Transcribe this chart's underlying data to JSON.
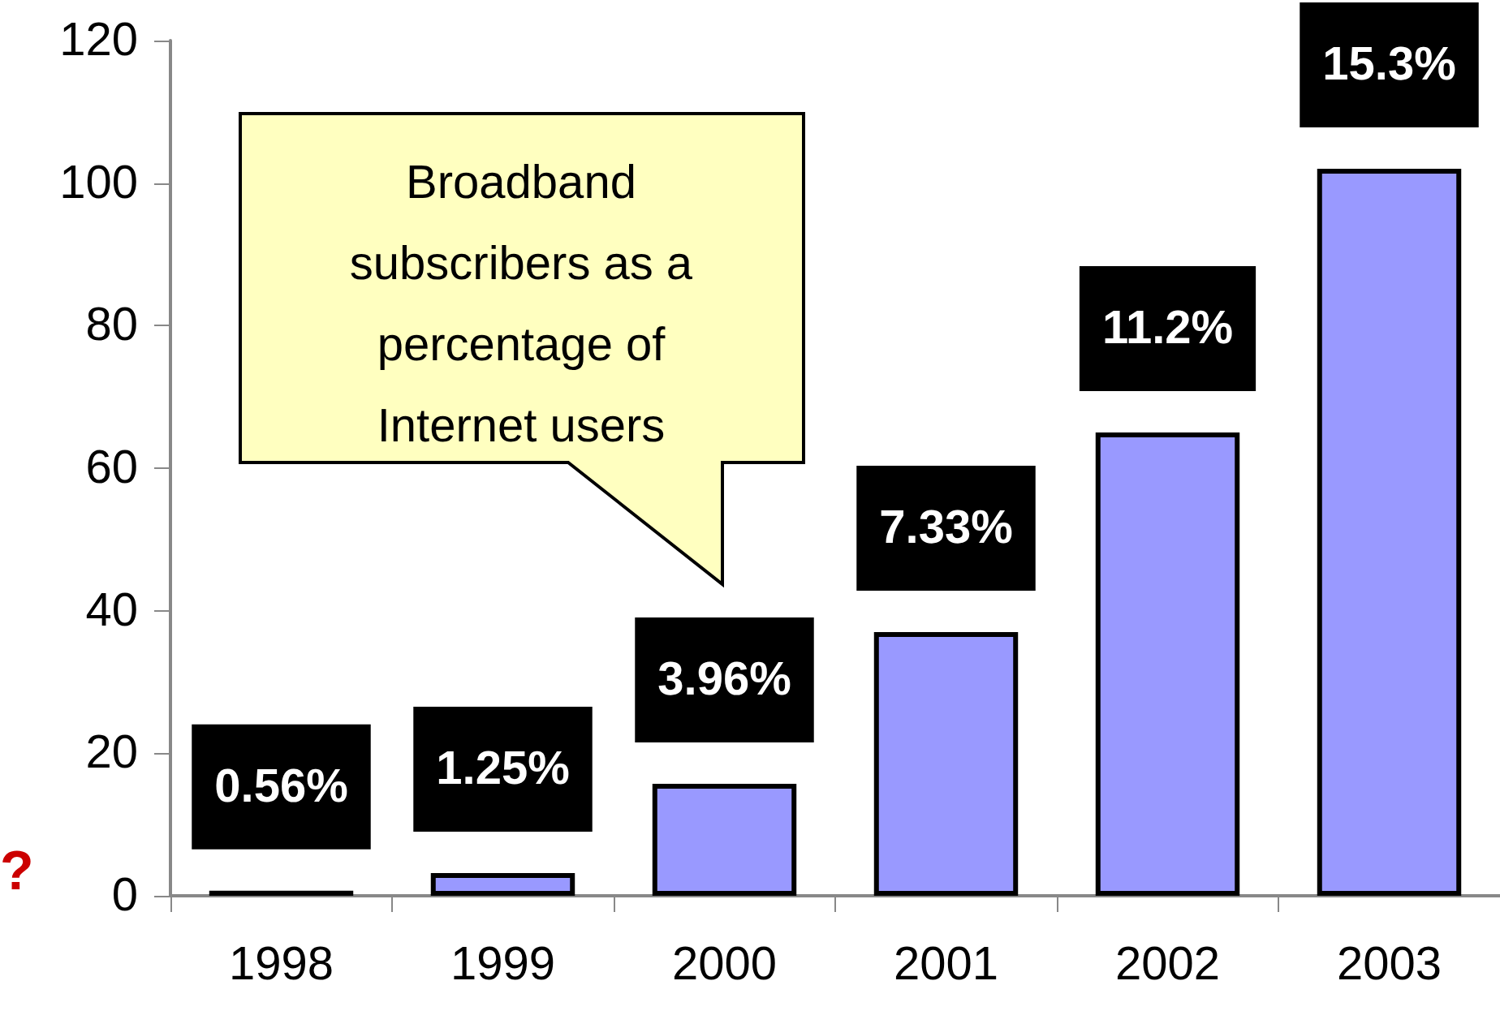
{
  "chart_data": {
    "type": "bar",
    "categories": [
      "1998",
      "1999",
      "2000",
      "2001",
      "2002",
      "2003"
    ],
    "values": [
      0.7,
      3.2,
      15.7,
      37,
      65,
      102
    ],
    "color": "#9999ff",
    "ylim": [
      0,
      120
    ],
    "yticks": [
      0,
      20,
      40,
      60,
      80,
      100,
      120
    ],
    "grid": false,
    "annotations": [
      "Broadband\nsubscribers as a\npercentage of\nInternet users",
      "?",
      "0.56%",
      "1.25%",
      "3.96%",
      "7.33%",
      "11.2%",
      "15.3%"
    ]
  }
}
